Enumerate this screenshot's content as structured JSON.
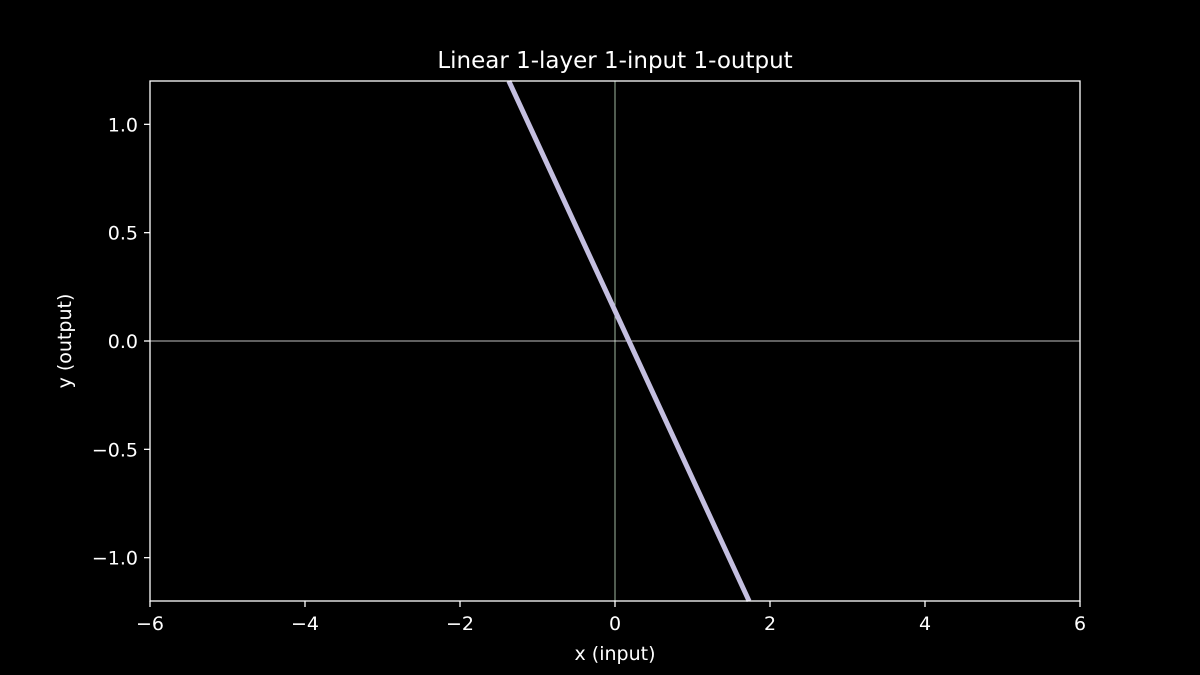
{
  "chart_data": {
    "type": "line",
    "title": "Linear 1-layer 1-input 1-output",
    "xlabel": "x (input)",
    "ylabel": "y (output)",
    "xlim": [
      -6,
      6
    ],
    "ylim": [
      -1.2,
      1.2
    ],
    "xticks": [
      -6,
      -4,
      -2,
      0,
      2,
      4,
      6
    ],
    "xtick_labels": [
      "−6",
      "−4",
      "−2",
      "0",
      "2",
      "4",
      "6"
    ],
    "yticks": [
      -1.0,
      -0.5,
      0.0,
      0.5,
      1.0
    ],
    "ytick_labels": [
      "−1.0",
      "−0.5",
      "0.0",
      "0.5",
      "1.0"
    ],
    "grid": false,
    "background_color": "#000000",
    "axes_color": "#ffffff",
    "zero_lines": {
      "vertical_color": "#c8e6c9",
      "horizontal_color": "#ffffff"
    },
    "series": [
      {
        "color": "#c4bfe0",
        "x": [
          -1.37,
          1.73
        ],
        "y": [
          1.2,
          -1.2
        ]
      }
    ]
  }
}
